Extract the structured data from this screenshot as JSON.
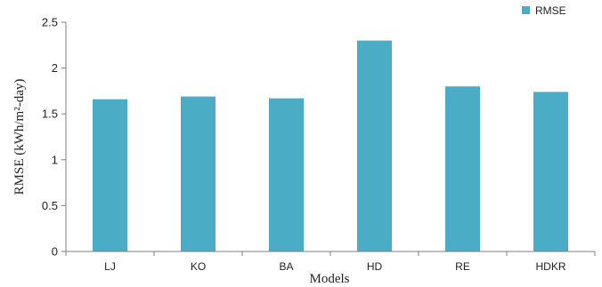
{
  "chart_data": {
    "type": "bar",
    "categories": [
      "LJ",
      "KO",
      "BA",
      "HD",
      "RE",
      "HDKR"
    ],
    "series": [
      {
        "name": "RMSE",
        "values": [
          1.66,
          1.69,
          1.67,
          2.3,
          1.8,
          1.74
        ]
      }
    ],
    "xlabel": "Models",
    "ylabel": "RMSE (kWh/m²-day)",
    "ylim": [
      0,
      2.5
    ],
    "yticks": [
      "0",
      "0.5",
      "1",
      "1.5",
      "2",
      "2.5"
    ],
    "grid": false,
    "legend_position": "top-right",
    "colors": {
      "bar": "#4BACC6",
      "axis": "#7f7f7f",
      "text": "#222222"
    }
  }
}
